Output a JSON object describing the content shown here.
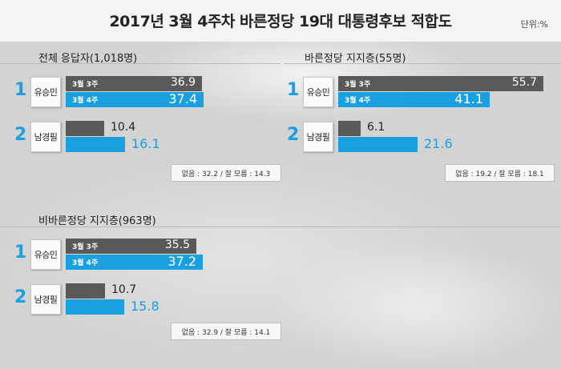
{
  "header": {
    "title": "2017년 3월 4주차 바른정당 19대 대통령후보 적합도",
    "unit": "단위:%"
  },
  "colors": {
    "week3": "#595959",
    "week4": "#1a9fe0",
    "value_week3": "#222222",
    "value_week4": "#1a9fe0"
  },
  "chart_data": [
    {
      "type": "bar",
      "title": "전체 응답자(1,018명)",
      "categories": [
        "유승민",
        "남경필"
      ],
      "ranks": [
        "1",
        "2"
      ],
      "series": [
        {
          "name": "3월 3주",
          "values": [
            36.9,
            10.4
          ]
        },
        {
          "name": "3월 4주",
          "values": [
            37.4,
            16.1
          ]
        }
      ],
      "note": "없음 : 32.2 / 잘 모름 : 14.3",
      "xlim": [
        0,
        100
      ]
    },
    {
      "type": "bar",
      "title": "바른정당 지지층(55명)",
      "categories": [
        "유승민",
        "남경필"
      ],
      "ranks": [
        "1",
        "2"
      ],
      "series": [
        {
          "name": "3월 3주",
          "values": [
            55.7,
            6.1
          ]
        },
        {
          "name": "3월 4주",
          "values": [
            41.1,
            21.6
          ]
        }
      ],
      "note": "없음 : 19.2 / 잘 모름 : 18.1",
      "xlim": [
        0,
        100
      ]
    },
    {
      "type": "bar",
      "title": "비바른정당 지지층(963명)",
      "categories": [
        "유승민",
        "남경필"
      ],
      "ranks": [
        "1",
        "2"
      ],
      "series": [
        {
          "name": "3월 3주",
          "values": [
            35.5,
            10.7
          ]
        },
        {
          "name": "3월 4주",
          "values": [
            37.2,
            15.8
          ]
        }
      ],
      "note": "없음 : 32.9 / 잘 모름 : 14.1",
      "xlim": [
        0,
        100
      ]
    }
  ]
}
